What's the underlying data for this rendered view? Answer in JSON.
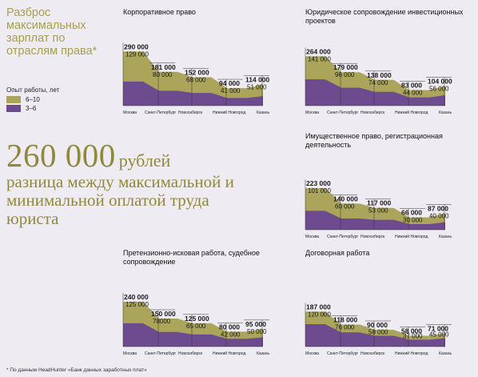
{
  "page": {
    "title": "Разброс максимальных зарплат по отраслям права*",
    "legend": {
      "title": "Опыт работы, лет",
      "items": [
        {
          "label": "6–10",
          "color": "#aaa55a"
        },
        {
          "label": "3–6",
          "color": "#6e4a8e"
        }
      ]
    },
    "headline": {
      "value": "260 000",
      "unit": "рублей",
      "text": "разница между максимальной и минимальной оплатой труда юриста"
    },
    "footnote": "* По данным HeadHunter «Банк данных заработных плат»"
  },
  "chart_data": [
    {
      "type": "area",
      "title": "Корпоративное право",
      "categories": [
        "Москва",
        "Санкт-Петербург",
        "Новосибирск",
        "Нижний Новгород",
        "Казань"
      ],
      "series": [
        {
          "name": "6–10",
          "values": [
            290000,
            181000,
            152000,
            94000,
            114000
          ]
        },
        {
          "name": "3–6",
          "values": [
            129000,
            80000,
            68000,
            41000,
            51000
          ]
        }
      ],
      "labels_top": [
        "290 000",
        "181 000",
        "152 000",
        "94 000",
        "114 000"
      ],
      "labels_bottom": [
        "129 000",
        "80 000",
        "68 000",
        "41 000",
        "51 000"
      ],
      "ylim": [
        0,
        300000
      ]
    },
    {
      "type": "area",
      "title": "Юридическое сопровождение инвестиционных проектов",
      "categories": [
        "Москва",
        "Санкт-Петербург",
        "Новосибирск",
        "Нижний Новгород",
        "Казань"
      ],
      "series": [
        {
          "name": "6–10",
          "values": [
            264000,
            179000,
            138000,
            83000,
            104000
          ]
        },
        {
          "name": "3–6",
          "values": [
            141000,
            96000,
            74000,
            44000,
            56000
          ]
        }
      ],
      "labels_top": [
        "264 000",
        "179 000",
        "138 000",
        "83 000",
        "104 000"
      ],
      "labels_bottom": [
        "141 000",
        "96 000",
        "74 000",
        "44 000",
        "56 000"
      ],
      "ylim": [
        0,
        300000
      ]
    },
    {
      "type": "area",
      "title": "Имущественное право, регистрационная деятельность",
      "categories": [
        "Москва",
        "Санкт-Петербург",
        "Новосибирск",
        "Нижний Новгород",
        "Казань"
      ],
      "series": [
        {
          "name": "6–10",
          "values": [
            223000,
            140000,
            117000,
            66000,
            87000
          ]
        },
        {
          "name": "3–6",
          "values": [
            101000,
            60000,
            53000,
            30000,
            40000
          ]
        }
      ],
      "labels_top": [
        "223 000",
        "140 000",
        "117 000",
        "66 000",
        "87 000"
      ],
      "labels_bottom": [
        "101 000",
        "60 000",
        "53 000",
        "30 000",
        "40 000"
      ],
      "ylim": [
        0,
        300000
      ]
    },
    {
      "type": "area",
      "title": "Претензионно-исковая работа, судебное сопровождение",
      "categories": [
        "Москва",
        "Санкт-Петербург",
        "Новосибирск",
        "Нижний Новгород",
        "Казань"
      ],
      "series": [
        {
          "name": "6–10",
          "values": [
            240000,
            150000,
            125000,
            80000,
            95000
          ]
        },
        {
          "name": "3–6",
          "values": [
            125000,
            78000,
            65000,
            42000,
            50000
          ]
        }
      ],
      "labels_top": [
        "240 000",
        "150 000",
        "125 000",
        "80 000",
        "95 000"
      ],
      "labels_bottom": [
        "125 000",
        "78000",
        "65 000",
        "42 000",
        "50 000"
      ],
      "ylim": [
        0,
        300000
      ]
    },
    {
      "type": "area",
      "title": "Договорная работа",
      "categories": [
        "Москва",
        "Санкт-Петербург",
        "Новосибирск",
        "Нижний Новгород",
        "Казань"
      ],
      "series": [
        {
          "name": "6–10",
          "values": [
            187000,
            118000,
            90000,
            58000,
            71000
          ]
        },
        {
          "name": "3–6",
          "values": [
            120000,
            76000,
            58000,
            37000,
            45000
          ]
        }
      ],
      "labels_top": [
        "187 000",
        "118 000",
        "90 000",
        "58 000",
        "71 000"
      ],
      "labels_bottom": [
        "120 000",
        "76 000",
        "58 000",
        "37 000",
        "45 000"
      ],
      "ylim": [
        0,
        300000
      ]
    }
  ]
}
